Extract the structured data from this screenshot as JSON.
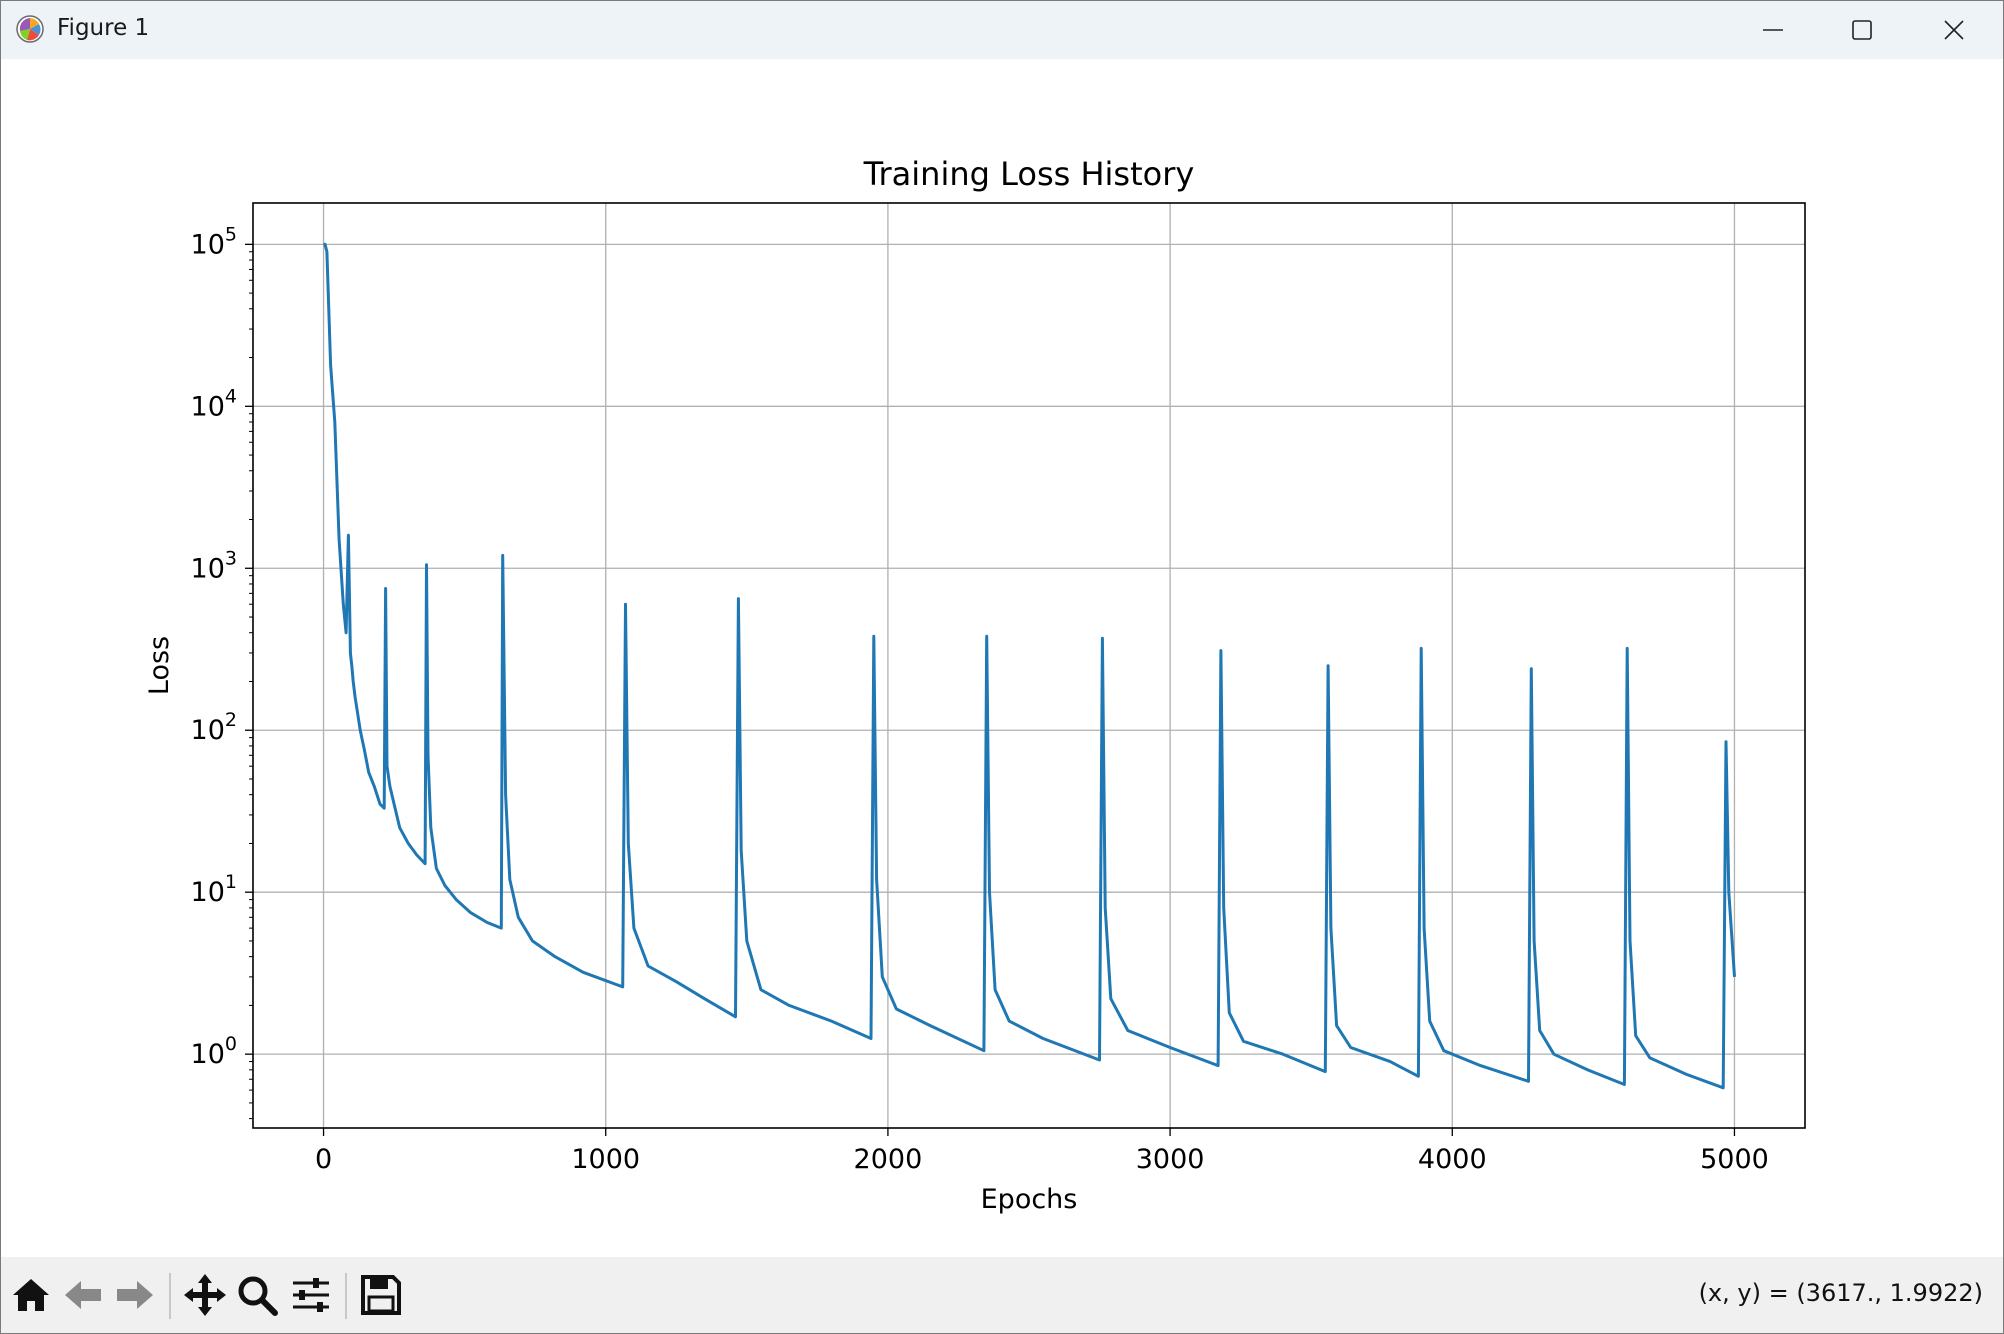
{
  "window": {
    "title": "Figure 1"
  },
  "toolbar": {
    "buttons": [
      "home-icon",
      "back-arrow-icon",
      "forward-arrow-icon",
      "pan-icon",
      "zoom-icon",
      "configure-subplots-icon",
      "save-icon"
    ],
    "coordinates": "(x, y) = (3617., 1.9922)"
  },
  "colors": {
    "line": "#1f77b4",
    "grid": "#b0b0b0",
    "titlebar": "#eef3f8",
    "toolbar": "#f0f0f0"
  },
  "chart_data": {
    "type": "line",
    "title": "Training Loss History",
    "xlabel": "Epochs",
    "ylabel": "Loss",
    "yscale": "log",
    "grid": true,
    "xlim": [
      -250,
      5250
    ],
    "ylim": [
      0.35,
      180000
    ],
    "xticks": [
      0,
      1000,
      2000,
      3000,
      4000,
      5000
    ],
    "xtick_labels": [
      "0",
      "1000",
      "2000",
      "3000",
      "4000",
      "5000"
    ],
    "yticks": [
      1,
      10,
      100,
      1000,
      10000,
      100000
    ],
    "ytick_labels": [
      {
        "base": "10",
        "exp": "0"
      },
      {
        "base": "10",
        "exp": "1"
      },
      {
        "base": "10",
        "exp": "2"
      },
      {
        "base": "10",
        "exp": "3"
      },
      {
        "base": "10",
        "exp": "4"
      },
      {
        "base": "10",
        "exp": "5"
      }
    ],
    "series": [
      {
        "color": "#1f77b4",
        "x": [
          0,
          5,
          12,
          25,
          40,
          55,
          70,
          80,
          88,
          95,
          100,
          105,
          112,
          120,
          130,
          145,
          160,
          180,
          200,
          215,
          220,
          225,
          235,
          250,
          270,
          300,
          330,
          360,
          365,
          370,
          380,
          400,
          430,
          470,
          520,
          580,
          630,
          635,
          645,
          660,
          690,
          740,
          820,
          920,
          1060,
          1070,
          1080,
          1100,
          1150,
          1250,
          1350,
          1460,
          1470,
          1480,
          1500,
          1550,
          1650,
          1800,
          1940,
          1950,
          1960,
          1980,
          2030,
          2150,
          2340,
          2350,
          2360,
          2380,
          2430,
          2550,
          2750,
          2760,
          2770,
          2790,
          2850,
          3000,
          3170,
          3180,
          3190,
          3210,
          3260,
          3400,
          3550,
          3560,
          3570,
          3590,
          3640,
          3780,
          3880,
          3890,
          3900,
          3920,
          3970,
          4100,
          4270,
          4280,
          4290,
          4310,
          4360,
          4480,
          4610,
          4620,
          4630,
          4650,
          4700,
          4830,
          4960,
          4970,
          4980,
          5000
        ],
        "y": [
          100000,
          100000,
          90000,
          18000,
          8000,
          1500,
          600,
          400,
          1600,
          300,
          250,
          200,
          160,
          130,
          100,
          75,
          55,
          45,
          35,
          33,
          750,
          60,
          45,
          35,
          25,
          20,
          17,
          15,
          1050,
          70,
          25,
          14,
          11,
          9,
          7.5,
          6.5,
          6,
          1200,
          40,
          12,
          7,
          5,
          4,
          3.2,
          2.6,
          600,
          20,
          6,
          3.5,
          2.8,
          2.2,
          1.7,
          650,
          18,
          5,
          2.5,
          2,
          1.6,
          1.25,
          380,
          12,
          3,
          1.9,
          1.5,
          1.05,
          380,
          10,
          2.5,
          1.6,
          1.25,
          0.92,
          370,
          8,
          2.2,
          1.4,
          1.1,
          0.85,
          310,
          8,
          1.8,
          1.2,
          1.0,
          0.78,
          250,
          6,
          1.5,
          1.1,
          0.9,
          0.73,
          320,
          6,
          1.6,
          1.05,
          0.85,
          0.68,
          240,
          5,
          1.4,
          1.0,
          0.8,
          0.65,
          320,
          5,
          1.3,
          0.95,
          0.75,
          0.62,
          85,
          10,
          3
        ]
      }
    ]
  }
}
